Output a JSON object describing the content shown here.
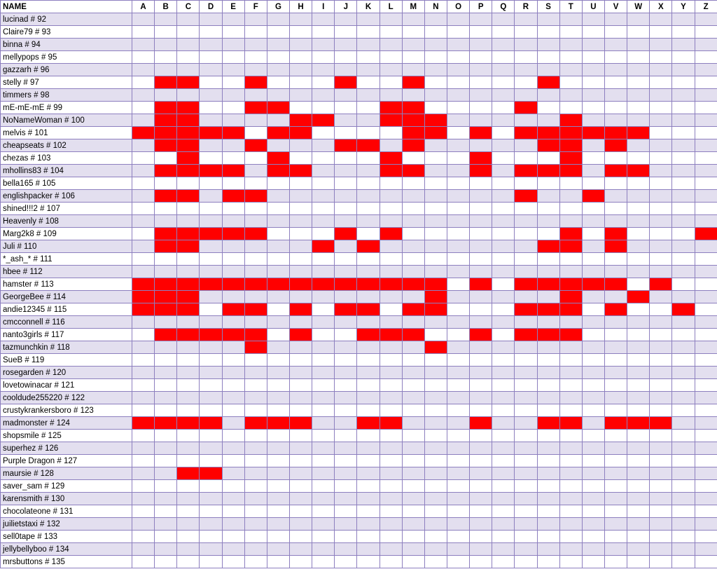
{
  "sheet": {
    "name_header": "NAME",
    "columns": [
      "A",
      "B",
      "C",
      "D",
      "E",
      "F",
      "G",
      "H",
      "I",
      "J",
      "K",
      "L",
      "M",
      "N",
      "O",
      "P",
      "Q",
      "R",
      "S",
      "T",
      "U",
      "V",
      "W",
      "X",
      "Y",
      "Z"
    ],
    "mark_color": "#ff0000",
    "band_color": "#e3dfef",
    "rows": [
      {
        "name": "lucinad # 92",
        "marks": []
      },
      {
        "name": "Claire79 # 93",
        "marks": []
      },
      {
        "name": "binna # 94",
        "marks": []
      },
      {
        "name": "mellypops # 95",
        "marks": []
      },
      {
        "name": "gazzarh # 96",
        "marks": []
      },
      {
        "name": "stelly # 97",
        "marks": [
          "B",
          "C",
          "F",
          "J",
          "M",
          "S"
        ]
      },
      {
        "name": "timmers # 98",
        "marks": []
      },
      {
        "name": "mE-mE-mE # 99",
        "marks": [
          "B",
          "C",
          "F",
          "G",
          "L",
          "M",
          "R"
        ]
      },
      {
        "name": "NoNameWoman # 100",
        "marks": [
          "B",
          "C",
          "H",
          "I",
          "L",
          "M",
          "N",
          "T"
        ]
      },
      {
        "name": "melvis # 101",
        "marks": [
          "A",
          "B",
          "C",
          "D",
          "E",
          "G",
          "H",
          "M",
          "N",
          "P",
          "R",
          "S",
          "T",
          "U",
          "V",
          "W"
        ]
      },
      {
        "name": "cheapseats # 102",
        "marks": [
          "B",
          "C",
          "F",
          "J",
          "K",
          "M",
          "S",
          "T",
          "V"
        ]
      },
      {
        "name": "chezas # 103",
        "marks": [
          "C",
          "G",
          "L",
          "P",
          "T"
        ]
      },
      {
        "name": "mhollins83 # 104",
        "marks": [
          "B",
          "C",
          "D",
          "E",
          "G",
          "H",
          "L",
          "M",
          "P",
          "R",
          "S",
          "T",
          "V",
          "W"
        ]
      },
      {
        "name": "bella165 # 105",
        "marks": []
      },
      {
        "name": "englishpacker # 106",
        "marks": [
          "B",
          "C",
          "E",
          "F",
          "R",
          "U"
        ]
      },
      {
        "name": "shined!!!2 # 107",
        "marks": []
      },
      {
        "name": "Heavenly # 108",
        "marks": []
      },
      {
        "name": "Marg2k8 # 109",
        "marks": [
          "B",
          "C",
          "D",
          "E",
          "F",
          "J",
          "L",
          "T",
          "V",
          "Z"
        ]
      },
      {
        "name": "Juli # 110",
        "marks": [
          "B",
          "C",
          "I",
          "K",
          "S",
          "T",
          "V"
        ]
      },
      {
        "name": "*_ash_* # 111",
        "marks": []
      },
      {
        "name": "hbee # 112",
        "marks": []
      },
      {
        "name": "hamster # 113",
        "marks": [
          "A",
          "B",
          "C",
          "D",
          "E",
          "F",
          "G",
          "H",
          "I",
          "J",
          "K",
          "L",
          "M",
          "N",
          "P",
          "R",
          "S",
          "T",
          "U",
          "V",
          "X"
        ]
      },
      {
        "name": "GeorgeBee # 114",
        "marks": [
          "A",
          "B",
          "C",
          "N",
          "T",
          "W"
        ]
      },
      {
        "name": "andie12345 # 115",
        "marks": [
          "A",
          "B",
          "C",
          "E",
          "F",
          "H",
          "J",
          "K",
          "M",
          "N",
          "R",
          "S",
          "T",
          "V",
          "Y"
        ]
      },
      {
        "name": "cmcconnell # 116",
        "marks": []
      },
      {
        "name": "nanto3girls # 117",
        "marks": [
          "B",
          "C",
          "D",
          "E",
          "F",
          "H",
          "K",
          "L",
          "M",
          "P",
          "R",
          "S",
          "T"
        ]
      },
      {
        "name": "tazmunchkin # 118",
        "marks": [
          "F",
          "N"
        ]
      },
      {
        "name": "SueB # 119",
        "marks": []
      },
      {
        "name": "rosegarden # 120",
        "marks": []
      },
      {
        "name": "lovetowinacar # 121",
        "marks": []
      },
      {
        "name": "cooldude255220 # 122",
        "marks": []
      },
      {
        "name": "crustykrankersboro # 123",
        "marks": []
      },
      {
        "name": "madmonster # 124",
        "marks": [
          "A",
          "B",
          "C",
          "D",
          "F",
          "G",
          "H",
          "K",
          "L",
          "P",
          "S",
          "T",
          "V",
          "W",
          "X"
        ]
      },
      {
        "name": "shopsmile # 125",
        "marks": []
      },
      {
        "name": "superhez # 126",
        "marks": []
      },
      {
        "name": "Purple Dragon # 127",
        "marks": []
      },
      {
        "name": "maursie # 128",
        "marks": [
          "C",
          "D"
        ]
      },
      {
        "name": "saver_sam # 129",
        "marks": []
      },
      {
        "name": "karensmith # 130",
        "marks": []
      },
      {
        "name": "chocolateone # 131",
        "marks": []
      },
      {
        "name": "juilietstaxi # 132",
        "marks": []
      },
      {
        "name": "sell0tape # 133",
        "marks": []
      },
      {
        "name": "jellybellyboo # 134",
        "marks": []
      },
      {
        "name": "mrsbuttons # 135",
        "marks": []
      }
    ]
  }
}
